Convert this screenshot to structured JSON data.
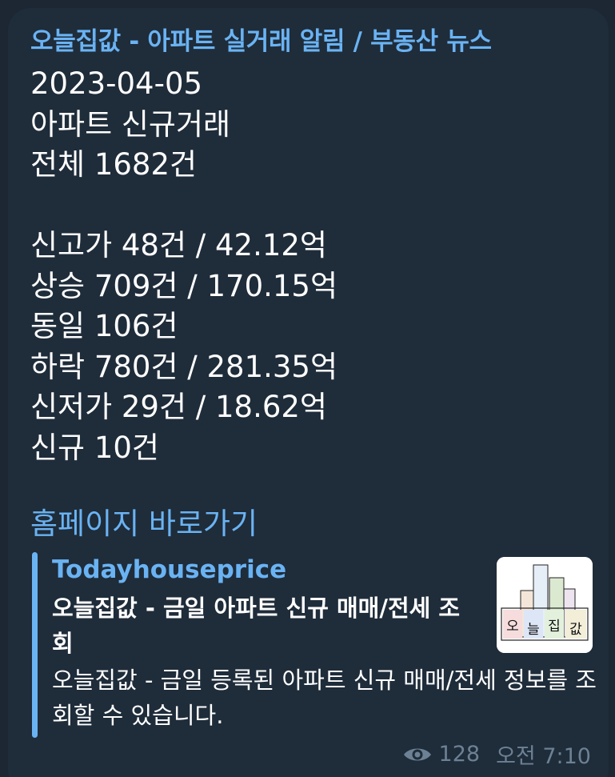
{
  "channel": {
    "name": "오늘집값 - 아파트 실거래 알림 / 부동산 뉴스"
  },
  "message": {
    "lines": [
      "2023-04-05",
      "아파트 신규거래",
      "전체 1682건",
      "",
      "신고가 48건 / 42.12억",
      "상승 709건 / 170.15억",
      "동일 106건",
      "하락 780건 / 281.35억",
      "신저가 29건 / 18.62억",
      "신규 10건"
    ],
    "link_text": "홈페이지 바로가기"
  },
  "preview": {
    "site_name": "Todayhouseprice",
    "title": "오늘집값 - 금일 아파트 신규 매매/전세 조회",
    "description": "오늘집값 - 금일 등록된 아파트 신규 매매/전세 정보를 조회할 수 있습니다.",
    "thumbnail_text": [
      "오",
      "늘",
      "집",
      "값"
    ]
  },
  "meta": {
    "views": "128",
    "time": "오전 7:10",
    "views_icon": "eye-icon"
  },
  "colors": {
    "accent": "#6ab3f3",
    "bubble": "#1f2c3a",
    "text": "#ffffff",
    "meta": "#6d8194"
  }
}
